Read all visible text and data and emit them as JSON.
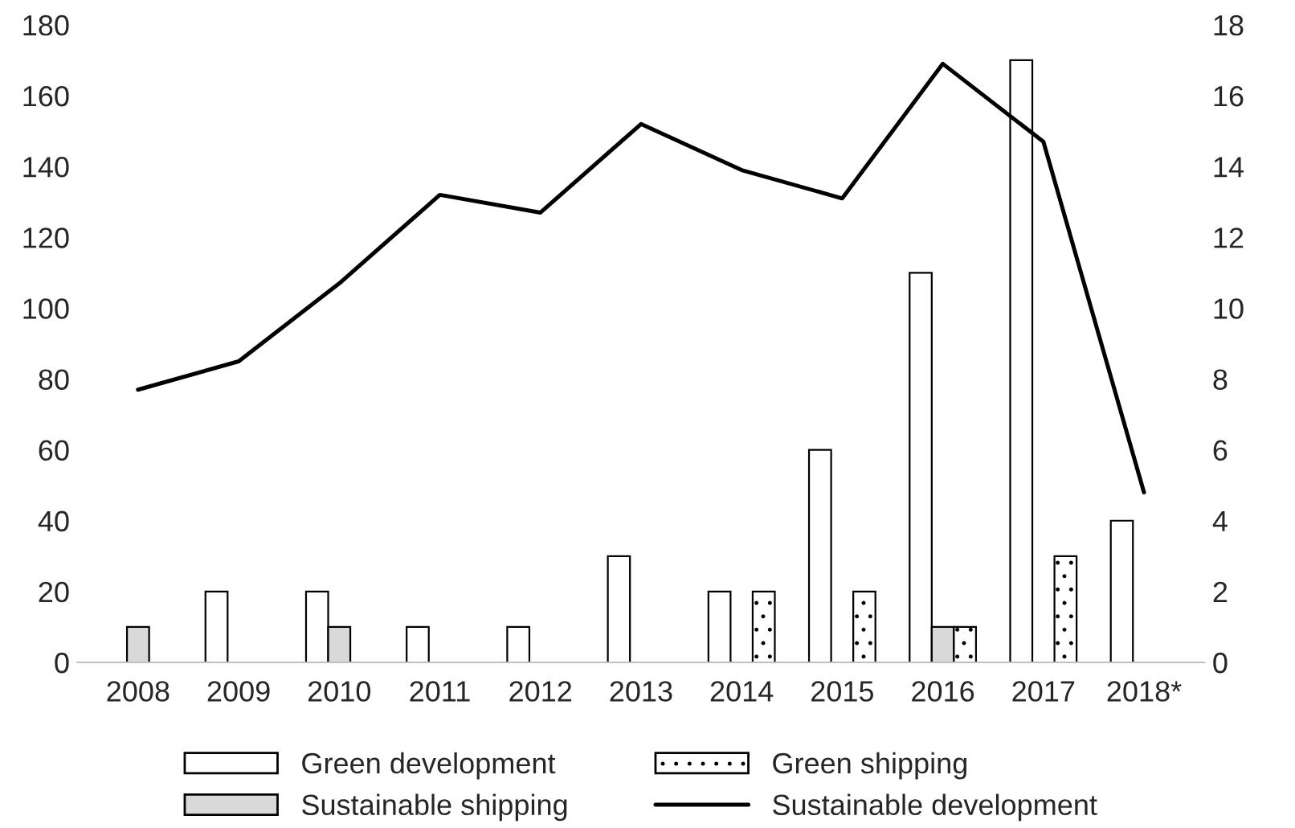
{
  "chart_data": {
    "type": "bar",
    "categories": [
      "2008",
      "2009",
      "2010",
      "2011",
      "2012",
      "2013",
      "2014",
      "2015",
      "2016",
      "2017",
      "2018*"
    ],
    "series": [
      {
        "name": "Green development",
        "color": "#ffffff",
        "values": [
          null,
          20,
          20,
          10,
          10,
          30,
          20,
          60,
          110,
          170,
          40
        ]
      },
      {
        "name": "Sustainable shipping",
        "color": "#d9d9d9",
        "values": [
          10,
          null,
          10,
          null,
          null,
          null,
          null,
          null,
          10,
          null,
          null
        ]
      },
      {
        "name": "Green shipping",
        "color": "#ffffff",
        "values": [
          null,
          null,
          null,
          null,
          null,
          null,
          20,
          20,
          10,
          30,
          null
        ]
      },
      {
        "name": "Sustainable development",
        "type": "line",
        "axis": "y2",
        "color": "#000000",
        "values": [
          7.7,
          8.5,
          10.7,
          13.2,
          12.7,
          15.2,
          13.9,
          13.1,
          16.9,
          14.7,
          4.8
        ]
      }
    ],
    "ylim": [
      0,
      180
    ],
    "yticks": [
      0,
      20,
      40,
      60,
      80,
      100,
      120,
      140,
      160,
      180
    ],
    "y2lim": [
      0,
      18
    ],
    "y2ticks": [
      0,
      2,
      4,
      6,
      8,
      10,
      12,
      14,
      16,
      18
    ],
    "legend": "bottom",
    "grid": false
  }
}
